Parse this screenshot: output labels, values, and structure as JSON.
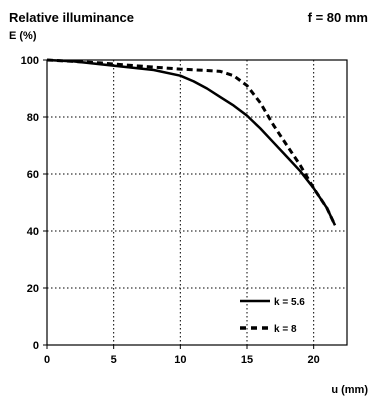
{
  "chart_data": {
    "type": "line",
    "title": "Relative illuminance",
    "ylabel": "E (%)",
    "corner_label": "f = 80 mm",
    "xlabel": "u (mm)",
    "xlim": [
      0,
      22.5
    ],
    "ylim": [
      0,
      100
    ],
    "xticks": [
      0,
      5,
      10,
      15,
      20
    ],
    "yticks": [
      0,
      20,
      40,
      60,
      80,
      100
    ],
    "x_tick_labels": [
      "0",
      "5",
      "10",
      "15",
      "20"
    ],
    "y_tick_labels": [
      "0",
      "20",
      "40",
      "60",
      "80",
      "100"
    ],
    "grid": true,
    "legend_position": "bottom-right",
    "series": [
      {
        "name": "k = 5.6",
        "style": "solid",
        "color": "#000000",
        "points": [
          [
            0,
            100
          ],
          [
            2,
            99.5
          ],
          [
            4,
            98.5
          ],
          [
            6,
            97.5
          ],
          [
            8,
            96.5
          ],
          [
            10,
            94.5
          ],
          [
            11,
            92.5
          ],
          [
            12,
            90
          ],
          [
            13,
            87
          ],
          [
            14,
            84
          ],
          [
            15,
            80.5
          ],
          [
            16,
            76
          ],
          [
            17,
            71
          ],
          [
            18,
            66
          ],
          [
            19,
            61
          ],
          [
            20,
            55
          ],
          [
            21,
            48
          ],
          [
            21.6,
            42
          ]
        ]
      },
      {
        "name": "k = 8",
        "style": "dashed",
        "color": "#000000",
        "points": [
          [
            0,
            100
          ],
          [
            2,
            99.5
          ],
          [
            4,
            99
          ],
          [
            6,
            98.2
          ],
          [
            8,
            97.5
          ],
          [
            10,
            96.8
          ],
          [
            12,
            96.3
          ],
          [
            13,
            96
          ],
          [
            14,
            94.5
          ],
          [
            15,
            91
          ],
          [
            16,
            85
          ],
          [
            17,
            77
          ],
          [
            18,
            70
          ],
          [
            19,
            63
          ],
          [
            20,
            55
          ],
          [
            21,
            48
          ],
          [
            21.6,
            42
          ]
        ]
      }
    ]
  }
}
